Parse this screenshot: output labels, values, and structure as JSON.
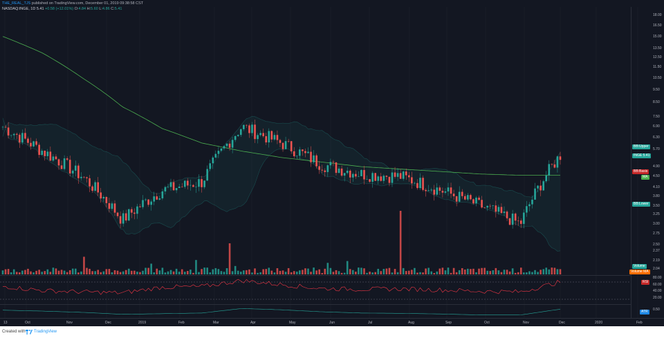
{
  "header": {
    "user": "THE_REAL_TJS",
    "published": "published on TradingView.com, December 01, 2019 09:38:58 CST",
    "symbol": "NASDAQ:INGE, 1D",
    "price": "5.41",
    "change": "+0.58 (+12.01%)",
    "ohlc_label_o": "O:",
    "ohlc_o": "4.84",
    "ohlc_label_h": "H:",
    "ohlc_h": "5.60",
    "ohlc_label_l": "L:",
    "ohlc_l": "4.86",
    "ohlc_label_c": "C:",
    "ohlc_c": "5.41"
  },
  "price_axis": [
    "18.00",
    "16.50",
    "15.00",
    "13.50",
    "12.50",
    "11.50",
    "10.50",
    "9.50",
    "8.50",
    "7.50",
    "6.90",
    "6.30",
    "5.70",
    "4.90",
    "4.50",
    "4.10",
    "3.80",
    "3.50",
    "3.25",
    "3.00",
    "2.75",
    "2.50",
    "2.37",
    "2.19",
    "2.04"
  ],
  "rsi_axis": [
    "80.00",
    "60.00",
    "40.00",
    "20.00"
  ],
  "atr_axis": [
    "0.50"
  ],
  "time_axis": [
    "13",
    "Oct",
    "Nov",
    "Dec",
    "2019",
    "Feb",
    "Mar",
    "Apr",
    "May",
    "Jun",
    "Jul",
    "Aug",
    "Sep",
    "Oct",
    "Nov",
    "Dec",
    "2020",
    "Feb"
  ],
  "tags": {
    "bb_upper": "BB:Upper",
    "symbol": "INGE",
    "symbol_price": "5.41",
    "bb_basis": "BB:Basis",
    "ma": "MA",
    "bb_lower": "BB:Lower",
    "volume": "Volume",
    "volume_ma": "Volume MA",
    "rsi": "RSI",
    "atr": "ATR"
  },
  "footer": {
    "created_with": "Created with",
    "brand": "TradingView"
  },
  "colors": {
    "background": "#131722",
    "up": "#26a69a",
    "down": "#ef5350",
    "ma": "#4caf50",
    "bb": "#26a69a",
    "rsi": "#f23645"
  },
  "chart_data": [
    {
      "type": "candlestick",
      "title": "NASDAQ:INGE, 1D",
      "x": [
        "Sep",
        "Oct",
        "Nov",
        "Dec",
        "2019",
        "Feb",
        "Mar",
        "Apr",
        "May",
        "Jun",
        "Jul",
        "Aug",
        "Sep",
        "Oct",
        "Nov"
      ],
      "close": [
        6.9,
        5.6,
        4.5,
        3.1,
        4.0,
        4.3,
        6.9,
        6.0,
        5.0,
        4.6,
        4.5,
        4.0,
        3.5,
        3.0,
        5.41
      ],
      "ma_200": [
        15.0,
        13.0,
        10.5,
        8.2,
        6.8,
        6.0,
        5.6,
        5.3,
        5.1,
        4.9,
        4.8,
        4.7,
        4.6,
        4.55,
        4.55
      ],
      "ylim": [
        2.0,
        18.0
      ],
      "scale": "log"
    },
    {
      "type": "bar",
      "title": "Volume",
      "x": [
        "Sep",
        "Oct",
        "Nov",
        "Dec",
        "2019",
        "Feb",
        "Mar",
        "Apr",
        "May",
        "Jun",
        "Jul",
        "Aug",
        "Sep",
        "Oct",
        "Nov"
      ]
    },
    {
      "type": "line",
      "title": "RSI",
      "ylim": [
        20,
        80
      ],
      "x": [
        "Sep",
        "Oct",
        "Nov",
        "Dec",
        "2019",
        "Feb",
        "Mar",
        "Apr",
        "May",
        "Jun",
        "Jul",
        "Aug",
        "Sep",
        "Oct",
        "Nov"
      ],
      "values": [
        55,
        42,
        38,
        35,
        52,
        54,
        72,
        60,
        48,
        46,
        47,
        44,
        40,
        38,
        68
      ]
    },
    {
      "type": "line",
      "title": "ATR",
      "x": [
        "Sep",
        "Oct",
        "Nov",
        "Dec",
        "2019",
        "Feb",
        "Mar",
        "Apr",
        "May",
        "Jun",
        "Jul",
        "Aug",
        "Sep",
        "Oct",
        "Nov"
      ],
      "values": [
        0.45,
        0.42,
        0.38,
        0.32,
        0.34,
        0.36,
        0.5,
        0.46,
        0.4,
        0.36,
        0.35,
        0.33,
        0.3,
        0.3,
        0.48
      ]
    }
  ]
}
